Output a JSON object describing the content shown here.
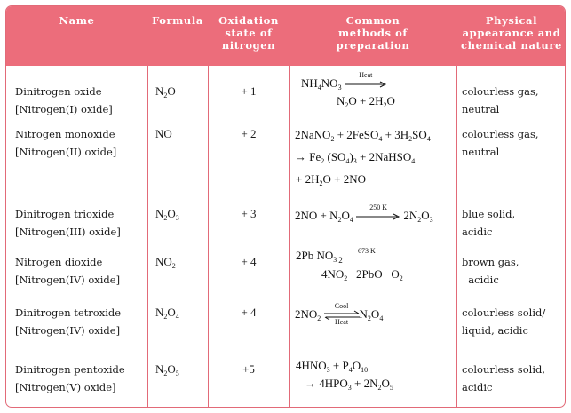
{
  "headers": {
    "name": "Name",
    "formula": "Formula",
    "oxidation": [
      "Oxidation",
      "state of",
      "nitrogen"
    ],
    "methods": [
      "Common",
      "methods of",
      "preparation"
    ],
    "physical": [
      "Physical",
      "appearance and",
      "chemical nature"
    ]
  },
  "rows": [
    {
      "name1": "Dinitrogen  oxide",
      "name2": "[Nitrogen(I)  oxide]",
      "f_main": "N",
      "f_sub": "2",
      "f_tail": "O",
      "ox": "+ 1",
      "phys1": "colourless gas,",
      "phys2": "neutral",
      "eq_a": "NH",
      "eq_a_sub": "4",
      "eq_b": "NO",
      "eq_b_sub": "3",
      "arrow": "Heat",
      "eq_line2": "N",
      "eq_line2_sub": "2",
      "eq_line2_rest": "O + 2H",
      "eq_line2_sub2": "2",
      "eq_line2_end": "O"
    },
    {
      "name1": "Nitrogen  monoxide",
      "name2": "[Nitrogen(II)  oxide]",
      "f_main": "NO",
      "f_sub": "",
      "f_tail": "",
      "ox": "+ 2",
      "phys1": "colourless gas,",
      "phys2": "neutral",
      "l1": "2NaNO",
      "l1s1": "2",
      "l1b": " + 2FeSO",
      "l1s2": "4",
      "l1c": " + 3H",
      "l1s3": "2",
      "l1d": "SO",
      "l1s4": "4",
      "l2": "→ Fe",
      "l2s1": "2",
      "l2b": " (SO",
      "l2s2": "4",
      "l2c": ")",
      "l2s3": "3",
      "l2d": " + 2NaHSO",
      "l2s4": "4",
      "l3": "+ 2H",
      "l3s1": "2",
      "l3b": "O + 2NO"
    },
    {
      "name1": "Dinitrogen  trioxide",
      "name2": "[Nitrogen(III)  oxide]",
      "f_main": "N",
      "f_sub": "2",
      "f_tail": "O",
      "f_sub2": "3",
      "ox": "+ 3",
      "phys1": "blue solid,",
      "phys2": " acidic",
      "eq": "2NO + N",
      "eq_s1": "2",
      "eq_b": "O",
      "eq_s2": "4",
      "arrow": "250 K",
      "eq_c": "2N",
      "eq_s3": "2",
      "eq_d": "O",
      "eq_s4": "3"
    },
    {
      "name1": "Nitrogen  dioxide",
      "name2": "[Nitrogen(IV)  oxide]",
      "f_main": "NO",
      "f_sub": "2",
      "f_tail": "",
      "ox": "+ 4",
      "phys1": "brown gas,",
      "phys2": "  acidic",
      "eq1a": "2Pb NO",
      "eq1s": "3",
      "eq1sub2": "2",
      "eq1label": "673 K",
      "eq2": "4NO",
      "eq2s": "2",
      "eq2b": "   2PbO   O",
      "eq2s2": "2"
    },
    {
      "name1": "Dinitrogen  tetroxide",
      "name2": "[Nitrogen(IV)  oxide]",
      "f_main": "N",
      "f_sub": "2",
      "f_tail": "O",
      "f_sub2": "4",
      "ox": "+ 4",
      "phys1": "colourless solid/",
      "phys2": "liquid,  acidic",
      "eq": "2NO",
      "eq_s1": "2",
      "arrow_top": "Cool",
      "arrow_bot": "Heat",
      "eq_c": "N",
      "eq_s2": "2",
      "eq_d": "O",
      "eq_s3": "4"
    },
    {
      "name1": "Dinitrogen  pentoxide",
      "name2": "[Nitrogen(V)  oxide]",
      "f_main": "N",
      "f_sub": "2",
      "f_tail": "O",
      "f_sub2": "5",
      "ox": "+5",
      "phys1": "colourless solid,",
      "phys2": "acidic",
      "l1": "4HNO",
      "l1s1": "3",
      "l1b": " + P",
      "l1s2": "4",
      "l1c": "O",
      "l1s3": "10",
      "l2": "→ 4HPO",
      "l2s1": "3",
      "l2b": " + 2N",
      "l2s2": "2",
      "l2c": "O",
      "l2s3": "5"
    }
  ]
}
